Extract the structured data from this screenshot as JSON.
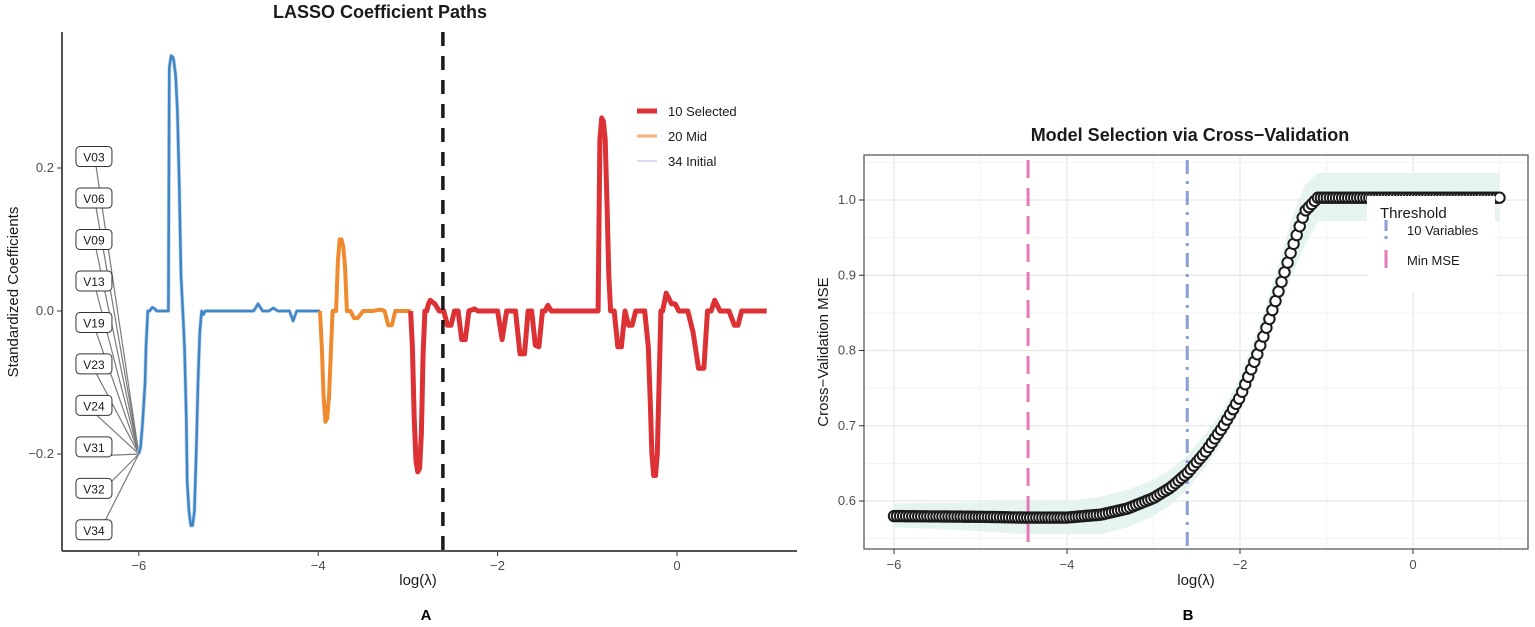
{
  "chart_data": [
    {
      "panel": "A",
      "type": "line",
      "title": "LASSO Coefficient Paths",
      "xlabel": "log(λ)",
      "ylabel": "Standardized Coefficients",
      "xlim": [
        -6.9,
        1.4
      ],
      "ylim": [
        -0.33,
        0.38
      ],
      "xticks": [
        -6,
        -4,
        -2,
        0
      ],
      "xtick_labels": [
        "−6",
        "−4",
        "−2",
        "0"
      ],
      "yticks": [
        0.2,
        0.0,
        -0.2
      ],
      "ytick_labels": [
        "0.2",
        "0.0",
        "−0.2"
      ],
      "grid": false,
      "legend_position": "inside-top-right",
      "vline": {
        "x": -2.61,
        "style": "dashed",
        "color": "#1a1a1a"
      },
      "series": [
        {
          "name": "34 Initial",
          "color": "#3f86c6",
          "legend_color": "#c9d2ee",
          "stroke_width": 2.5,
          "x": [
            -6.0,
            -5.98,
            -5.96,
            -5.93,
            -5.92,
            -5.9,
            -5.88,
            -5.85,
            -5.82,
            -5.8,
            -5.72,
            -5.7,
            -5.67,
            -5.66,
            -5.64,
            -5.62,
            -5.61,
            -5.59,
            -5.57,
            -5.55,
            -5.53,
            -5.51,
            -5.49,
            -5.47,
            -5.46,
            -5.44,
            -5.42,
            -5.4,
            -5.38,
            -5.36,
            -5.34,
            -5.32,
            -5.3,
            -5.28,
            -5.26,
            -5.24,
            -5.22,
            -5.18,
            -5.14,
            -5.0,
            -4.72,
            -4.67,
            -4.62,
            -4.55,
            -4.5,
            -4.45,
            -4.4,
            -4.32,
            -4.28,
            -4.24,
            -4.2,
            -4.1,
            -4.02,
            -3.98
          ],
          "y": [
            -0.2,
            -0.19,
            -0.16,
            -0.1,
            -0.05,
            0.0,
            0.0,
            0.005,
            0.003,
            0.0,
            0.0,
            0.0,
            0.0,
            0.34,
            0.357,
            0.355,
            0.35,
            0.33,
            0.28,
            0.18,
            0.05,
            0.0,
            -0.05,
            -0.15,
            -0.24,
            -0.28,
            -0.3,
            -0.3,
            -0.28,
            -0.2,
            -0.1,
            -0.03,
            0.0,
            -0.005,
            0.0,
            0.0,
            0.0,
            0.0,
            0.0,
            0.0,
            0.0,
            0.01,
            0.0,
            0.0,
            0.004,
            0.0,
            0.0,
            0.0,
            -0.014,
            0.0,
            0.0,
            0.0,
            0.0,
            0.0
          ]
        },
        {
          "name": "20 Mid",
          "color": "#f08a2e",
          "legend_color": "#f6b27f",
          "stroke_width": 4,
          "x": [
            -3.98,
            -3.96,
            -3.94,
            -3.92,
            -3.9,
            -3.88,
            -3.86,
            -3.84,
            -3.82,
            -3.8,
            -3.78,
            -3.76,
            -3.74,
            -3.72,
            -3.7,
            -3.68,
            -3.66,
            -3.64,
            -3.6,
            -3.56,
            -3.5,
            -3.45,
            -3.4,
            -3.3,
            -3.26,
            -3.22,
            -3.18,
            -3.14,
            -3.1,
            -3.02,
            -2.97
          ],
          "y": [
            0.0,
            -0.05,
            -0.12,
            -0.155,
            -0.15,
            -0.12,
            -0.06,
            0.0,
            0.0,
            0.0,
            0.07,
            0.1,
            0.1,
            0.09,
            0.06,
            0.0,
            0.0,
            0.0,
            -0.01,
            -0.01,
            0.0,
            0.0,
            0.0,
            0.002,
            0.0,
            -0.02,
            -0.02,
            0.0,
            0.0,
            0.0,
            0.0
          ]
        },
        {
          "name": "10 Selected",
          "color": "#dc3135",
          "legend_color": "#dc3135",
          "stroke_width": 5,
          "x": [
            -2.97,
            -2.95,
            -2.93,
            -2.91,
            -2.89,
            -2.87,
            -2.85,
            -2.83,
            -2.81,
            -2.79,
            -2.77,
            -2.75,
            -2.7,
            -2.65,
            -2.6,
            -2.56,
            -2.52,
            -2.48,
            -2.44,
            -2.4,
            -2.36,
            -2.32,
            -2.26,
            -2.22,
            -2.18,
            -2.14,
            -2.1,
            -2.0,
            -1.95,
            -1.9,
            -1.8,
            -1.75,
            -1.7,
            -1.66,
            -1.62,
            -1.58,
            -1.54,
            -1.5,
            -1.47,
            -1.44,
            -1.4,
            -1.36,
            -1.3,
            -1.24,
            -1.2,
            -1.1,
            -1.0,
            -0.92,
            -0.88,
            -0.86,
            -0.84,
            -0.82,
            -0.8,
            -0.78,
            -0.76,
            -0.74,
            -0.72,
            -0.7,
            -0.66,
            -0.62,
            -0.58,
            -0.54,
            -0.5,
            -0.46,
            -0.42,
            -0.36,
            -0.32,
            -0.3,
            -0.28,
            -0.26,
            -0.24,
            -0.22,
            -0.2,
            -0.18,
            -0.16,
            -0.12,
            -0.06,
            -0.02,
            0.02,
            0.06,
            0.12,
            0.18,
            0.24,
            0.3,
            0.32,
            0.34,
            0.36,
            0.38,
            0.42,
            0.48,
            0.54,
            0.58,
            0.64,
            0.68,
            0.72,
            0.76,
            0.8,
            0.85,
            0.9,
            1.0
          ],
          "y": [
            0.0,
            -0.05,
            -0.15,
            -0.21,
            -0.225,
            -0.22,
            -0.17,
            -0.06,
            0.0,
            0.0,
            0.01,
            0.015,
            0.01,
            0.0,
            0.0,
            -0.02,
            -0.02,
            0.0,
            0.0,
            -0.04,
            -0.04,
            0.0,
            0.003,
            0.0,
            0.0,
            0.0,
            0.0,
            0.0,
            -0.04,
            0.0,
            0.0,
            -0.06,
            -0.06,
            0.0,
            0.0,
            -0.048,
            -0.05,
            0.0,
            0.0,
            0.008,
            0.0,
            0.0,
            0.0,
            0.0,
            0.0,
            0.0,
            0.0,
            0.0,
            0.0,
            0.24,
            0.27,
            0.265,
            0.24,
            0.15,
            0.05,
            0.0,
            0.0,
            0.0,
            -0.05,
            -0.05,
            0.0,
            -0.02,
            -0.02,
            0.0,
            0.0,
            0.0,
            -0.05,
            -0.12,
            -0.2,
            -0.23,
            -0.23,
            -0.2,
            -0.1,
            0.0,
            0.0,
            0.025,
            0.01,
            0.01,
            0.0,
            0.0,
            0.0,
            -0.03,
            -0.08,
            -0.08,
            -0.04,
            0.0,
            0.0,
            0.0,
            0.015,
            0.0,
            0.0,
            0.0,
            -0.02,
            -0.02,
            0.0,
            0.0,
            0.0,
            0.0,
            0.0,
            0.0
          ]
        }
      ],
      "labels": {
        "anchor": {
          "x": -6.0,
          "y": -0.2
        },
        "items": [
          "V03",
          "V06",
          "V09",
          "V13",
          "V19",
          "V23",
          "V24",
          "V31",
          "V32",
          "V34"
        ],
        "y_positions": [
          0.216,
          0.158,
          0.1,
          0.042,
          -0.016,
          -0.074,
          -0.132,
          -0.19,
          -0.248,
          -0.306
        ],
        "x_position": -6.5
      },
      "legend": [
        {
          "label": "10 Selected",
          "color": "#dc3135",
          "width": 5
        },
        {
          "label": "20 Mid",
          "color": "#f6b27f",
          "width": 3
        },
        {
          "label": "34 Initial",
          "color": "#c9d2ee",
          "width": 1.5
        }
      ]
    },
    {
      "panel": "B",
      "type": "scatter",
      "title": "Model Selection via Cross−Validation",
      "xlabel": "log(λ)",
      "ylabel": "Cross−Validation MSE",
      "xlim": [
        -6.35,
        1.35
      ],
      "ylim": [
        0.537,
        1.06
      ],
      "xticks": [
        -6,
        -4,
        -2,
        0
      ],
      "xtick_labels": [
        "−6",
        "−4",
        "−2",
        "0"
      ],
      "yticks": [
        0.6,
        0.7,
        0.8,
        0.9,
        1.0
      ],
      "ytick_labels": [
        "0.6",
        "0.7",
        "0.8",
        "0.9",
        "1.0"
      ],
      "grid": true,
      "legend_position": "inside-top-right",
      "legend_title": "Threshold",
      "curve": {
        "x": [
          -6.0,
          -5.0,
          -4.5,
          -4.0,
          -3.6,
          -3.3,
          -3.0,
          -2.8,
          -2.61,
          -2.4,
          -2.2,
          -2.0,
          -1.8,
          -1.6,
          -1.4,
          -1.25,
          -1.1,
          -0.5,
          0.0,
          0.5,
          1.0
        ],
        "y": [
          0.58,
          0.579,
          0.578,
          0.578,
          0.582,
          0.59,
          0.604,
          0.618,
          0.637,
          0.665,
          0.698,
          0.738,
          0.795,
          0.862,
          0.935,
          0.985,
          1.003,
          1.003,
          1.003,
          1.003,
          1.003
        ],
        "band_lower": [
          0.565,
          0.56,
          0.556,
          0.556,
          0.556,
          0.565,
          0.58,
          0.595,
          0.615,
          0.645,
          0.68,
          0.72,
          0.775,
          0.84,
          0.9,
          0.94,
          0.972,
          0.972,
          0.972,
          0.972,
          0.972
        ],
        "band_upper": [
          0.597,
          0.598,
          0.6,
          0.6,
          0.606,
          0.615,
          0.628,
          0.642,
          0.66,
          0.69,
          0.72,
          0.765,
          0.825,
          0.895,
          0.975,
          1.02,
          1.036,
          1.036,
          1.036,
          1.036,
          1.036
        ],
        "marker": "open-circle",
        "marker_color": "#1a1a1a",
        "band_color": "#e2f3ee"
      },
      "vlines": [
        {
          "label": "10 Variables",
          "x": -2.61,
          "style": "dashdot",
          "color": "#8a9ed4"
        },
        {
          "label": "Min MSE",
          "x": -4.45,
          "style": "dashed",
          "color": "#e57bb5"
        }
      ]
    }
  ],
  "panels": {
    "a_label": "A",
    "b_label": "B"
  }
}
